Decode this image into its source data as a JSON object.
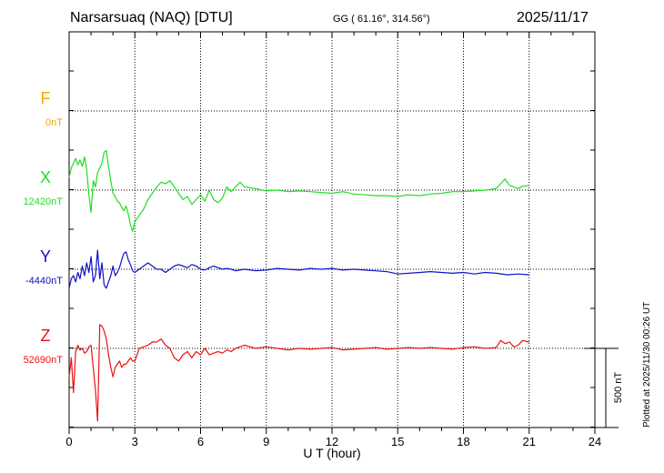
{
  "header": {
    "station": "Narsarsuaq (NAQ)  [DTU]",
    "coords": "GG ( 61.16°, 314.56°)",
    "date": "2025/11/17"
  },
  "footer_note": "Plotted at 2025/11/30 00:26 UT",
  "chart_data": {
    "type": "line",
    "xlabel": "U T (hour)",
    "xlim": [
      0,
      24
    ],
    "xticks": [
      0,
      3,
      6,
      9,
      12,
      15,
      18,
      21,
      24
    ],
    "scale_bar": "500 nT",
    "grid": true,
    "series": [
      {
        "name": "F",
        "baseline": "0nT",
        "color": "#f5a800",
        "x": [],
        "y": []
      },
      {
        "name": "X",
        "baseline": "12420nT",
        "color": "#22dd22",
        "x": [
          0,
          0.1,
          0.2,
          0.3,
          0.4,
          0.5,
          0.6,
          0.7,
          0.8,
          0.9,
          1.0,
          1.1,
          1.2,
          1.3,
          1.4,
          1.5,
          1.6,
          1.7,
          1.8,
          1.9,
          2.0,
          2.1,
          2.2,
          2.3,
          2.4,
          2.5,
          2.6,
          2.7,
          2.8,
          2.9,
          3.0,
          3.2,
          3.4,
          3.6,
          3.8,
          4.0,
          4.2,
          4.4,
          4.6,
          4.8,
          5.0,
          5.2,
          5.4,
          5.6,
          5.8,
          6.0,
          6.2,
          6.4,
          6.6,
          6.8,
          7.0,
          7.2,
          7.4,
          7.6,
          7.8,
          8.0,
          8.5,
          9.0,
          9.5,
          10.0,
          10.5,
          11.0,
          11.5,
          12.0,
          12.5,
          13.0,
          13.5,
          14.0,
          14.5,
          15.0,
          15.5,
          16.0,
          16.5,
          17.0,
          17.5,
          18.0,
          18.5,
          19.0,
          19.5,
          19.7,
          19.9,
          20.1,
          20.3,
          20.5,
          20.7,
          21.0
        ],
        "y": [
          80,
          140,
          170,
          200,
          160,
          190,
          150,
          210,
          130,
          -30,
          -140,
          60,
          20,
          110,
          140,
          170,
          240,
          250,
          150,
          60,
          -20,
          -40,
          -70,
          -80,
          -110,
          -130,
          -100,
          -150,
          -220,
          -260,
          -200,
          -160,
          -120,
          -60,
          -20,
          20,
          50,
          40,
          60,
          20,
          -20,
          -60,
          -40,
          -90,
          -60,
          -30,
          -70,
          0,
          -60,
          -80,
          -50,
          20,
          -10,
          20,
          50,
          20,
          10,
          -5,
          0,
          -10,
          -5,
          -10,
          -15,
          -20,
          -10,
          -25,
          -30,
          -35,
          -35,
          -40,
          -30,
          -35,
          -25,
          -20,
          -10,
          -10,
          -5,
          0,
          10,
          40,
          70,
          30,
          20,
          10,
          25,
          30
        ]
      },
      {
        "name": "Y",
        "baseline": "-4440nT",
        "color": "#1010c8",
        "x": [
          0,
          0.1,
          0.2,
          0.3,
          0.4,
          0.5,
          0.6,
          0.7,
          0.8,
          0.9,
          1.0,
          1.1,
          1.2,
          1.3,
          1.4,
          1.5,
          1.6,
          1.7,
          1.8,
          1.9,
          2.0,
          2.1,
          2.2,
          2.3,
          2.4,
          2.5,
          2.6,
          2.7,
          2.8,
          2.9,
          3.0,
          3.2,
          3.4,
          3.6,
          3.8,
          4.0,
          4.2,
          4.4,
          4.6,
          4.8,
          5.0,
          5.2,
          5.4,
          5.6,
          5.8,
          6.0,
          6.2,
          6.4,
          6.6,
          6.8,
          7.0,
          7.2,
          7.4,
          7.6,
          7.8,
          8.0,
          8.5,
          9.0,
          9.5,
          10.0,
          10.5,
          11.0,
          11.5,
          12.0,
          12.5,
          13.0,
          13.5,
          14.0,
          14.5,
          15.0,
          15.5,
          16.0,
          16.5,
          17.0,
          17.5,
          18.0,
          18.5,
          19.0,
          19.5,
          20.0,
          20.5,
          21.0
        ],
        "y": [
          -120,
          -60,
          -40,
          -80,
          -20,
          -60,
          20,
          -40,
          40,
          -20,
          80,
          -80,
          -40,
          120,
          -60,
          40,
          -100,
          -120,
          -80,
          -40,
          20,
          -40,
          -20,
          10,
          60,
          100,
          110,
          60,
          30,
          -10,
          -20,
          0,
          20,
          40,
          20,
          0,
          0,
          -20,
          0,
          20,
          30,
          20,
          10,
          30,
          20,
          0,
          -5,
          10,
          20,
          10,
          0,
          5,
          0,
          -10,
          -5,
          0,
          -10,
          -5,
          5,
          0,
          -5,
          5,
          0,
          5,
          -5,
          0,
          -5,
          -10,
          -15,
          -30,
          -25,
          -20,
          -15,
          -20,
          -25,
          -20,
          -30,
          -20,
          -25,
          -35,
          -30,
          -35
        ]
      },
      {
        "name": "Z",
        "baseline": "52690nT",
        "color": "#ee1111",
        "x": [
          0,
          0.1,
          0.2,
          0.3,
          0.4,
          0.5,
          0.6,
          0.7,
          0.8,
          0.9,
          1.0,
          1.1,
          1.2,
          1.3,
          1.4,
          1.5,
          1.6,
          1.7,
          1.8,
          1.9,
          2.0,
          2.1,
          2.2,
          2.3,
          2.4,
          2.5,
          2.6,
          2.7,
          2.8,
          2.9,
          3.0,
          3.2,
          3.4,
          3.6,
          3.8,
          4.0,
          4.2,
          4.4,
          4.6,
          4.8,
          5.0,
          5.2,
          5.4,
          5.6,
          5.8,
          6.0,
          6.2,
          6.4,
          6.6,
          6.8,
          7.0,
          7.2,
          7.4,
          7.6,
          7.8,
          8.0,
          8.5,
          9.0,
          9.5,
          10.0,
          10.5,
          11.0,
          11.5,
          12.0,
          12.5,
          13.0,
          13.5,
          14.0,
          14.5,
          15.0,
          15.5,
          16.0,
          16.5,
          17.0,
          17.5,
          18.0,
          18.5,
          19.0,
          19.5,
          19.7,
          19.9,
          20.1,
          20.3,
          20.5,
          20.7,
          21.0
        ],
        "y": [
          -180,
          -60,
          -280,
          -20,
          20,
          -10,
          0,
          -30,
          -20,
          10,
          20,
          -120,
          -260,
          -460,
          150,
          140,
          110,
          60,
          -40,
          -120,
          -180,
          -120,
          -100,
          -80,
          -120,
          -100,
          -100,
          -80,
          -60,
          -80,
          -80,
          0,
          10,
          20,
          40,
          40,
          60,
          20,
          0,
          -60,
          -80,
          -40,
          -20,
          -60,
          -20,
          -40,
          0,
          -40,
          -30,
          -20,
          -30,
          -10,
          -20,
          0,
          10,
          20,
          0,
          10,
          0,
          -10,
          0,
          -5,
          0,
          5,
          -10,
          -5,
          0,
          5,
          -5,
          0,
          5,
          0,
          5,
          0,
          -5,
          5,
          10,
          0,
          5,
          50,
          30,
          40,
          10,
          20,
          50,
          40
        ]
      }
    ]
  }
}
